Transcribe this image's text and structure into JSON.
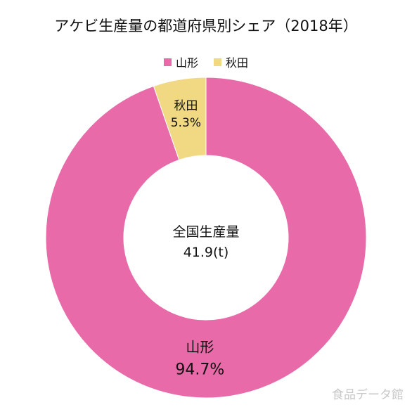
{
  "chart_data": {
    "type": "pie",
    "title": "アケビ生産量の都道府県別シェア（2018年）",
    "legend_position": "top",
    "categories": [
      "山形",
      "秋田"
    ],
    "values": [
      94.7,
      5.3
    ],
    "value_labels": [
      "94.7%",
      "5.3%"
    ],
    "colors": [
      "#e86aa8",
      "#f1d882"
    ],
    "center_label": {
      "line1": "全国生産量",
      "line2": "41.9(t)"
    }
  },
  "watermark": "食品データ館"
}
